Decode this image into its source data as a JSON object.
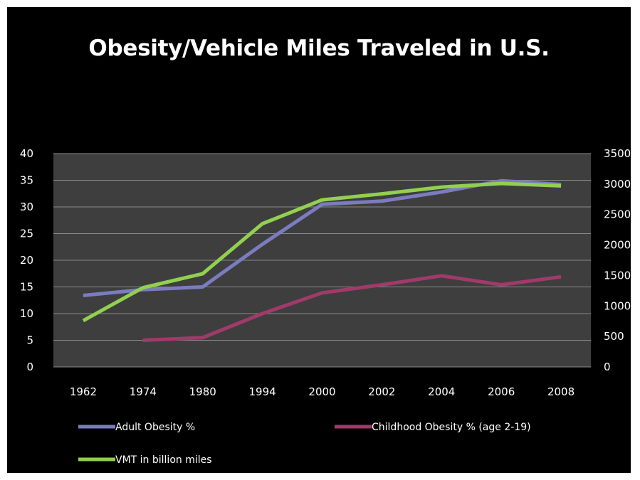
{
  "chart_data": {
    "type": "line",
    "title": "Obesity/Vehicle Miles Traveled in U.S.",
    "categories": [
      "1962",
      "1974",
      "1980",
      "1994",
      "2000",
      "2002",
      "2004",
      "2006",
      "2008"
    ],
    "y_left": {
      "ylim": [
        0,
        40
      ],
      "ticks": [
        "0",
        "5",
        "10",
        "15",
        "20",
        "25",
        "30",
        "35",
        "40"
      ]
    },
    "y_right": {
      "ylim": [
        0,
        3500
      ],
      "ticks": [
        "0",
        "500",
        "1000",
        "1500",
        "2000",
        "2500",
        "3000",
        "3500"
      ]
    },
    "grid": true,
    "legend_position": "bottom",
    "series": [
      {
        "name": "Adult Obesity %",
        "axis": "left",
        "color": "#7b7cc0",
        "values": [
          13.4,
          14.5,
          15.0,
          23.0,
          30.5,
          31.1,
          32.8,
          34.9,
          34.2
        ]
      },
      {
        "name": "Childhood Obesity % (age 2-19)",
        "axis": "left",
        "color": "#a03a6a",
        "values": [
          null,
          5.0,
          5.5,
          10.0,
          13.9,
          15.4,
          17.1,
          15.4,
          16.9
        ]
      },
      {
        "name": "VMT in billion miles",
        "axis": "right",
        "color": "#92d050",
        "values": [
          760,
          1300,
          1530,
          2350,
          2740,
          2840,
          2950,
          3010,
          2970
        ]
      }
    ]
  }
}
